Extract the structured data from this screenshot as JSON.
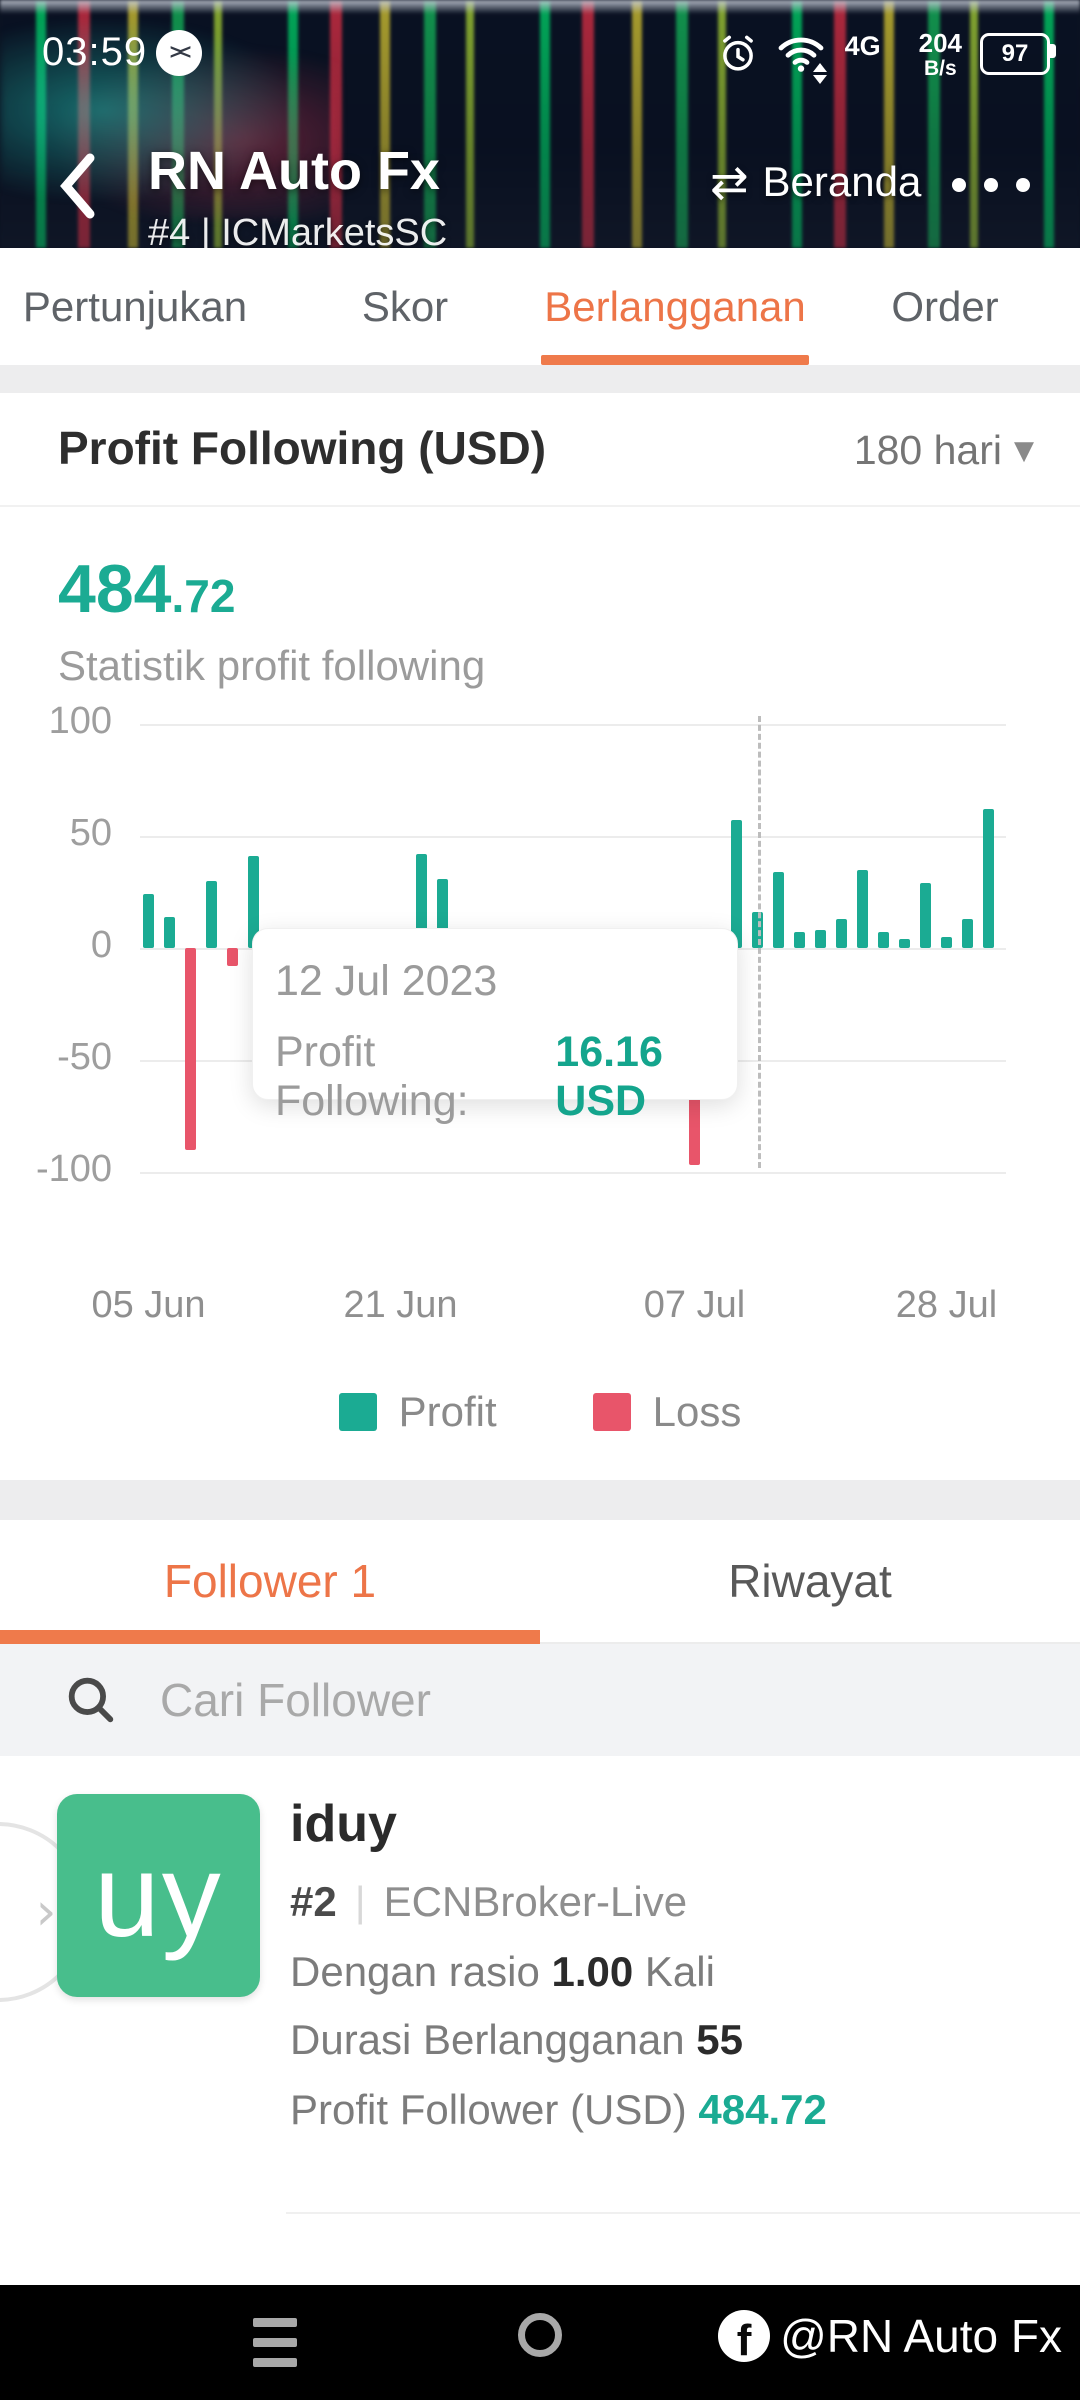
{
  "status_bar": {
    "time": "03:59",
    "app_icon_glyph": "><",
    "network_type": "4G",
    "net_speed_value": "204",
    "net_speed_unit": "B/s",
    "battery_percent": "97"
  },
  "header": {
    "title": "RN Auto Fx",
    "subtitle": "#4 | ICMarketsSC",
    "home_label": "Beranda",
    "swap_icon_glyph": "⇄"
  },
  "top_tabs": {
    "items": [
      {
        "label": "Pertunjukan",
        "active": false
      },
      {
        "label": "Skor",
        "active": false
      },
      {
        "label": "Berlangganan",
        "active": true
      },
      {
        "label": "Order",
        "active": false
      }
    ]
  },
  "profit_section": {
    "title": "Profit Following (USD)",
    "range_label": "180 hari",
    "caret_glyph": "▼",
    "value_int": "484",
    "value_frac": ".72",
    "caption": "Statistik profit following"
  },
  "chart_data": {
    "type": "bar",
    "title": "Profit Following (USD)",
    "ylim": [
      -100,
      100
    ],
    "yticks": [
      100,
      50,
      0,
      -50,
      -100
    ],
    "grid": true,
    "xticks": [
      {
        "label": "05 Jun",
        "bar_index": 0
      },
      {
        "label": "21 Jun",
        "bar_index": 12
      },
      {
        "label": "07 Jul",
        "bar_index": 26
      },
      {
        "label": "28 Jul",
        "bar_index": 38
      }
    ],
    "values": [
      24,
      14,
      -90,
      30,
      -8,
      41,
      5,
      6,
      4,
      7,
      5,
      6,
      4,
      42,
      31,
      6,
      5,
      7,
      4,
      6,
      5,
      7,
      4,
      6,
      5,
      4,
      -97,
      3,
      57,
      16.16,
      34,
      7,
      8,
      13,
      35,
      7,
      4,
      29,
      5,
      13,
      62
    ],
    "selected_index": 29,
    "tooltip": {
      "date": "12 Jul 2023",
      "label": "Profit Following:",
      "value": "16.16 USD"
    },
    "legend": [
      {
        "label": "Profit",
        "color": "#1BAB93"
      },
      {
        "label": "Loss",
        "color": "#E8556A"
      }
    ],
    "profit_color": "#1BAB93",
    "loss_color": "#E8556A",
    "legend_position": "bottom"
  },
  "follower_tabs": {
    "items": [
      {
        "label": "Follower 1",
        "active": true
      },
      {
        "label": "Riwayat",
        "active": false
      }
    ]
  },
  "search": {
    "placeholder": "Cari Follower"
  },
  "follower": {
    "avatar_text": "uy",
    "name": "iduy",
    "rank": "#2",
    "separator": "|",
    "account": "ECNBroker-Live",
    "ratio_prefix": "Dengan rasio",
    "ratio_value": "1.00",
    "ratio_suffix": "Kali",
    "duration_label": "Durasi Berlangganan",
    "duration_value": "55",
    "profit_label": "Profit Follower (USD)",
    "profit_value": "484.72",
    "chevron_glyph": "›"
  },
  "bottom_bar": {
    "watermark": "@RN Auto Fx",
    "fb_glyph": "f"
  },
  "colors": {
    "accent_orange": "#ED7548",
    "teal": "#1BAB93",
    "loss_red": "#E8556A",
    "avatar_green": "#48BE8C"
  }
}
